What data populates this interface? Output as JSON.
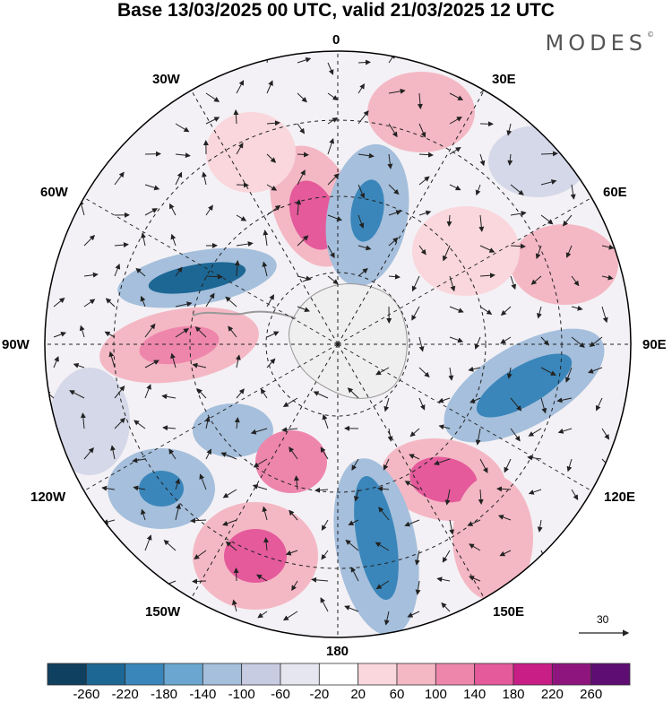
{
  "title": "Base 13/03/2025 00 UTC, valid 21/03/2025 12 UTC",
  "brand": "MODES",
  "brand_mark": "©",
  "longitude_labels": {
    "top": "0",
    "r30e": "30E",
    "r60e": "60E",
    "r90e": "90E",
    "r120e": "120E",
    "r150e": "150E",
    "bottom": "180",
    "l150w": "150W",
    "l120w": "120W",
    "l90w": "90W",
    "l60w": "60W",
    "l30w": "30W"
  },
  "vector_reference": "30",
  "colorbar": {
    "ticks": [
      "-260",
      "-220",
      "-180",
      "-140",
      "-100",
      "-60",
      "-20",
      "20",
      "60",
      "100",
      "140",
      "180",
      "220",
      "260"
    ],
    "colors": [
      "#10405f",
      "#1d6794",
      "#3a86ba",
      "#6aa6cf",
      "#a5bfdc",
      "#c7cce3",
      "#e6e6f0",
      "#ffffff",
      "#f9d7dc",
      "#f4b8c4",
      "#ee86ac",
      "#e45a9b",
      "#c81e86",
      "#8e157e",
      "#5e0e73"
    ]
  }
}
